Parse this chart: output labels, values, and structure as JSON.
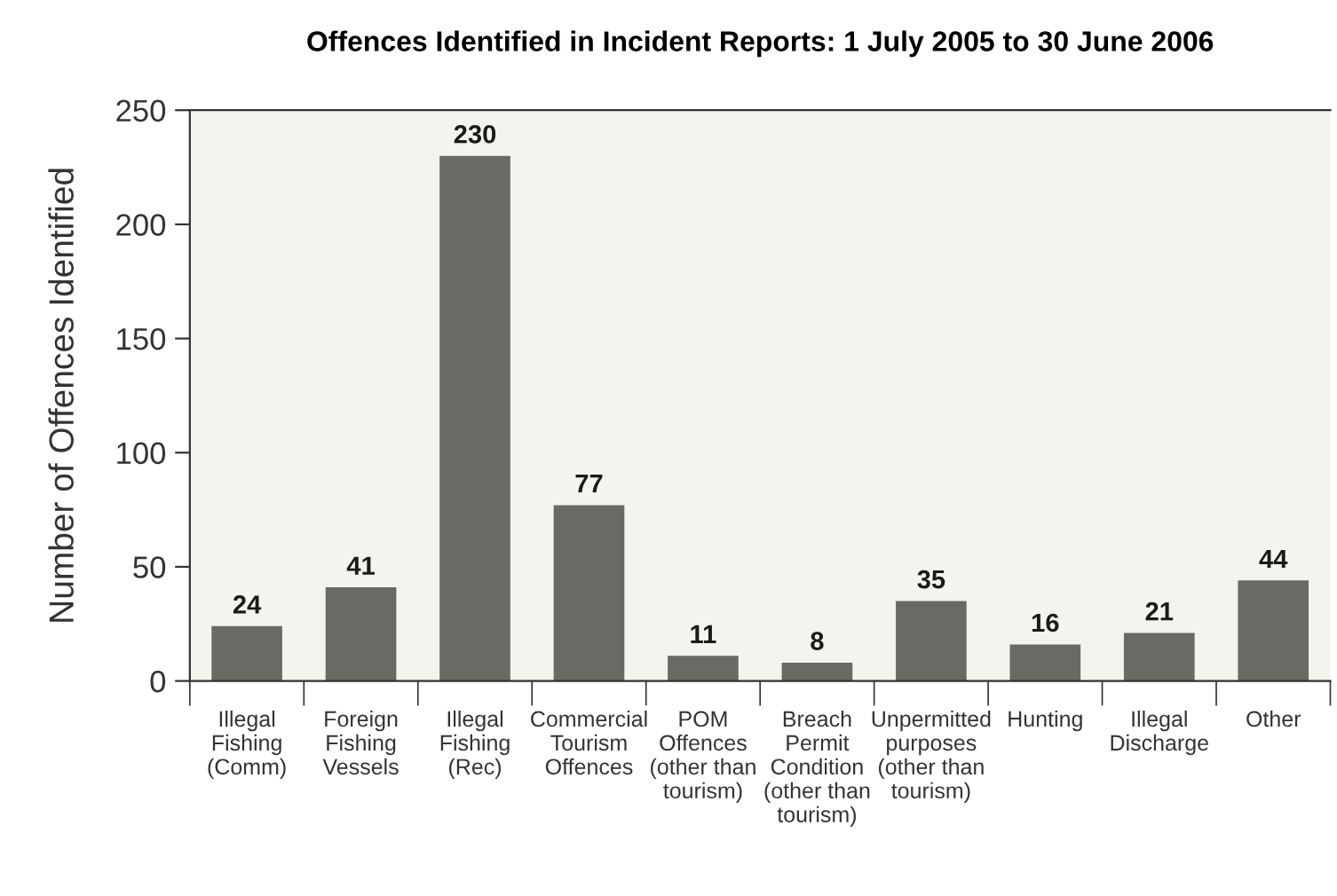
{
  "chart_data": {
    "type": "bar",
    "title": "Offences Identified in Incident Reports: 1 July 2005 to 30 June 2006",
    "ylabel": "Number of Offences Identified",
    "categories": [
      "Illegal\nFishing\n(Comm)",
      "Foreign\nFishing\nVessels",
      "Illegal\nFishing\n(Rec)",
      "Commercial\nTourism\nOffences",
      "POM\nOffences\n(other than\ntourism)",
      "Breach\nPermit\nCondition\n(other than\ntourism)",
      "Unpermitted\npurposes\n(other than\ntourism)",
      "Hunting",
      "Illegal\nDischarge",
      "Other"
    ],
    "values": [
      24,
      41,
      230,
      77,
      11,
      8,
      35,
      16,
      21,
      44
    ],
    "color": "#676b63",
    "ylim": [
      0,
      250
    ],
    "yticks": [
      0,
      50,
      100,
      150,
      200,
      250
    ],
    "data_labels": true
  }
}
